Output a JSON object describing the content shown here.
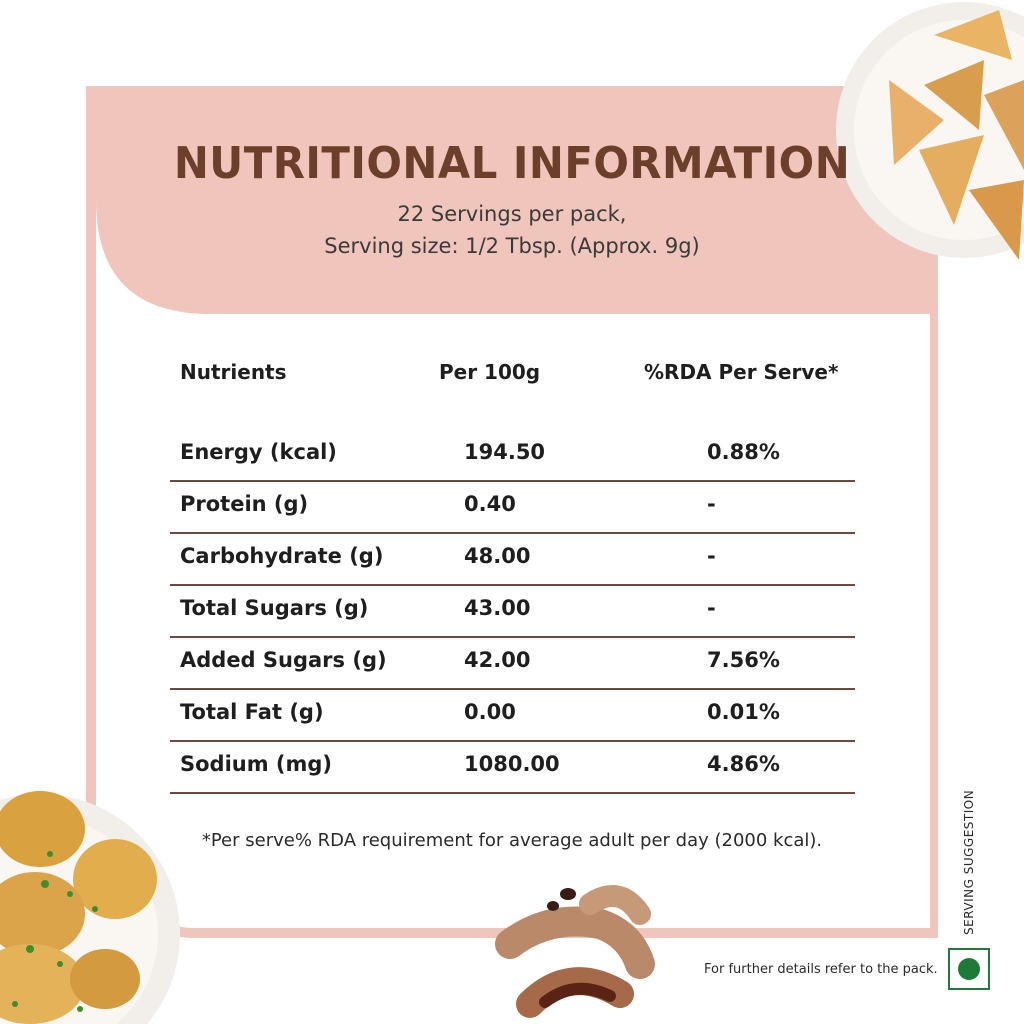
{
  "header": {
    "title": "NUTRITIONAL INFORMATION",
    "servings": "22 Servings per pack,",
    "serving_size": "Serving size: 1/2 Tbsp. (Approx. 9g)"
  },
  "table": {
    "columns": [
      "Nutrients",
      "Per 100g",
      "%RDA Per Serve*"
    ],
    "rows": [
      [
        "Energy (kcal)",
        "194.50",
        "0.88%"
      ],
      [
        "Protein (g)",
        "0.40",
        "-"
      ],
      [
        "Carbohydrate (g)",
        "48.00",
        "-"
      ],
      [
        "Total Sugars (g)",
        "43.00",
        "-"
      ],
      [
        "Added Sugars (g)",
        "42.00",
        "7.56%"
      ],
      [
        "Total Fat (g)",
        "0.00",
        "0.01%"
      ],
      [
        "Sodium (mg)",
        "1080.00",
        "4.86%"
      ]
    ]
  },
  "footnote": "*Per serve% RDA requirement for average adult per day (2000 kcal).",
  "side_label": "SERVING SUGGESTION",
  "further_details": "For further details refer to the pack.",
  "colors": {
    "frame": "#efc5bc",
    "title": "#6b3f2a",
    "row_line": "#6b4a3c",
    "veg_mark": "#1f7a3a"
  }
}
